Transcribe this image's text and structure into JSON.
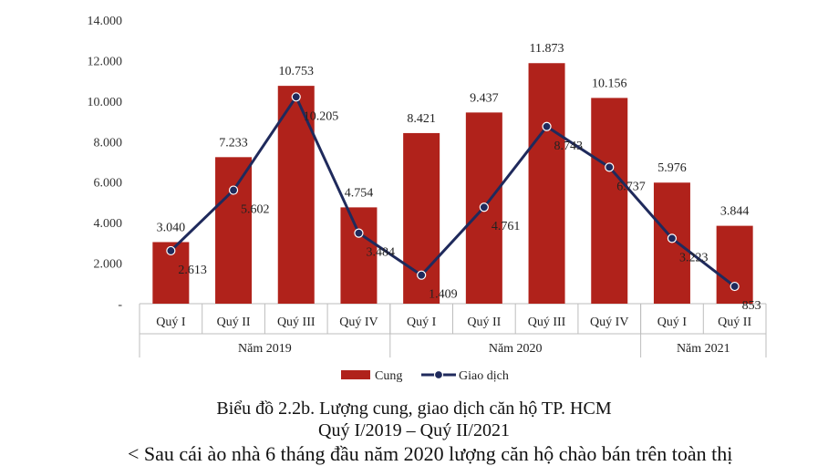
{
  "chart_data": {
    "type": "bar+line",
    "categories": [
      "Quý I",
      "Quý II",
      "Quý III",
      "Quý IV",
      "Quý I",
      "Quý II",
      "Quý III",
      "Quý IV",
      "Quý I",
      "Quý II"
    ],
    "groups": [
      {
        "label": "Năm 2019",
        "count": 4
      },
      {
        "label": "Năm 2020",
        "count": 4
      },
      {
        "label": "Năm 2021",
        "count": 2
      }
    ],
    "series": [
      {
        "name": "Cung",
        "type": "bar",
        "color": "#b0221b",
        "values": [
          3040,
          7233,
          10753,
          4754,
          8421,
          9437,
          11873,
          10156,
          5976,
          3844
        ],
        "labels": [
          "3.040",
          "7.233",
          "10.753",
          "4.754",
          "8.421",
          "9.437",
          "11.873",
          "10.156",
          "5.976",
          "3.844"
        ]
      },
      {
        "name": "Giao dịch",
        "type": "line",
        "color": "#1f2a5c",
        "values": [
          2613,
          5602,
          10205,
          3484,
          1409,
          4761,
          8743,
          6737,
          3223,
          853
        ],
        "labels": [
          "2.613",
          "5.602",
          "10.205",
          "3.484",
          "1.409",
          "4.761",
          "8.743",
          "6.737",
          "3.223",
          "853"
        ]
      }
    ],
    "ylim": [
      0,
      14000
    ],
    "yticks": [
      {
        "value": 0,
        "label": "-"
      },
      {
        "value": 2000,
        "label": "2.000"
      },
      {
        "value": 4000,
        "label": "4.000"
      },
      {
        "value": 6000,
        "label": "6.000"
      },
      {
        "value": 8000,
        "label": "8.000"
      },
      {
        "value": 10000,
        "label": "10.000"
      },
      {
        "value": 12000,
        "label": "12.000"
      },
      {
        "value": 14000,
        "label": "14.000"
      }
    ],
    "legend_position": "bottom",
    "grid": false
  },
  "caption": {
    "line1": "Biểu đồ 2.2b. Lượng cung, giao dịch căn hộ TP. HCM",
    "line2": "Quý I/2019 – Quý II/2021"
  },
  "body_text": "< Sau cái ào nhà 6 tháng đầu năm 2020 lượng căn hộ chào bán trên toàn thị"
}
